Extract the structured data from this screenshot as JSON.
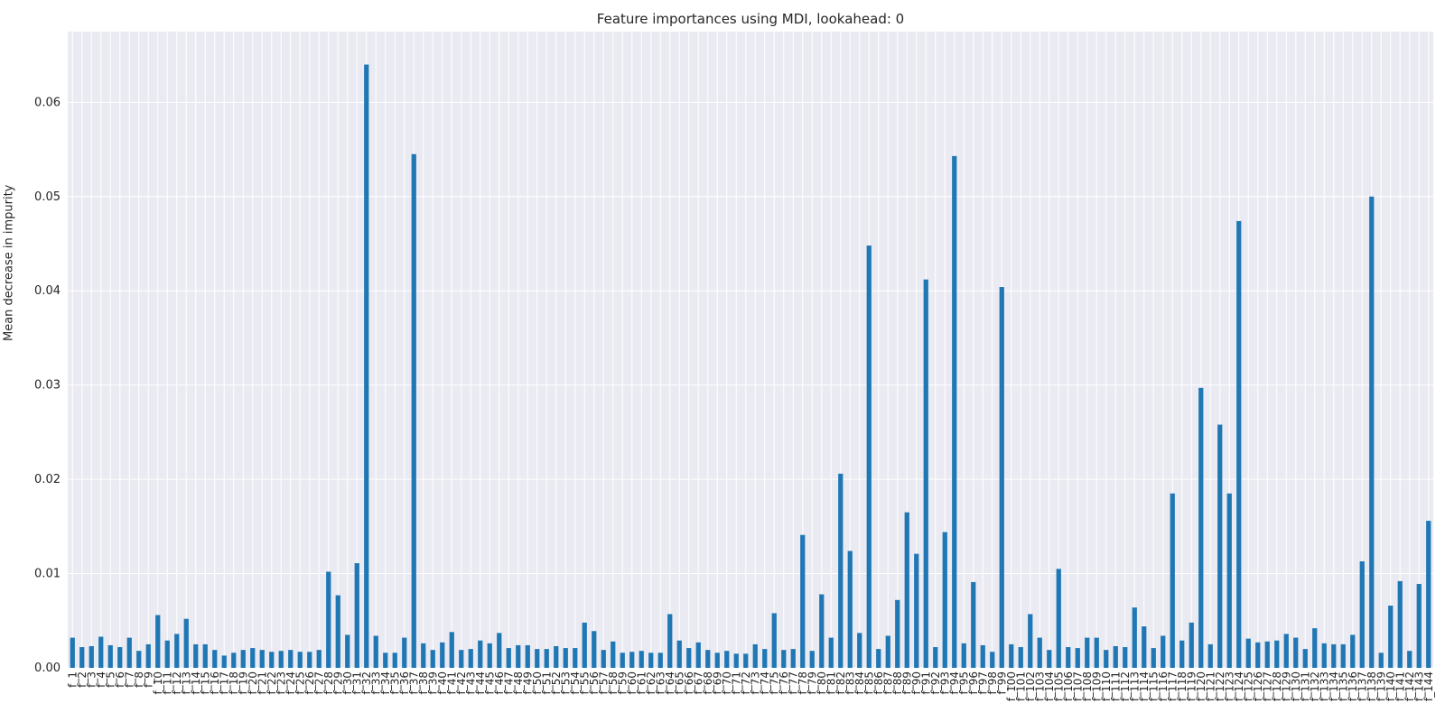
{
  "chart_data": {
    "type": "bar",
    "title": "Feature importances using MDI, lookahead: 0",
    "xlabel": "",
    "ylabel": "Mean decrease in impurity",
    "ylim": [
      0,
      0.0675
    ],
    "yticks": [
      "0.00",
      "0.01",
      "0.02",
      "0.03",
      "0.04",
      "0.05",
      "0.06"
    ],
    "grid": true,
    "bar_color": "#1f77b4",
    "background": "#eaeaf2",
    "categories": [
      "f_1",
      "f_2",
      "f_3",
      "f_4",
      "f_5",
      "f_6",
      "f_7",
      "f_8",
      "f_9",
      "f_10",
      "f_11",
      "f_12",
      "f_13",
      "f_14",
      "f_15",
      "f_16",
      "f_17",
      "f_18",
      "f_19",
      "f_20",
      "f_21",
      "f_22",
      "f_23",
      "f_24",
      "f_25",
      "f_26",
      "f_27",
      "f_28",
      "f_29",
      "f_30",
      "f_31",
      "f_32",
      "f_33",
      "f_34",
      "f_35",
      "f_36",
      "f_37",
      "f_38",
      "f_39",
      "f_40",
      "f_41",
      "f_42",
      "f_43",
      "f_44",
      "f_45",
      "f_46",
      "f_47",
      "f_48",
      "f_49",
      "f_50",
      "f_51",
      "f_52",
      "f_53",
      "f_54",
      "f_55",
      "f_56",
      "f_57",
      "f_58",
      "f_59",
      "f_60",
      "f_61",
      "f_62",
      "f_63",
      "f_64",
      "f_65",
      "f_66",
      "f_67",
      "f_68",
      "f_69",
      "f_70",
      "f_71",
      "f_72",
      "f_73",
      "f_74",
      "f_75",
      "f_76",
      "f_77",
      "f_78",
      "f_79",
      "f_80",
      "f_81",
      "f_82",
      "f_83",
      "f_84",
      "f_85",
      "f_86",
      "f_87",
      "f_88",
      "f_89",
      "f_90",
      "f_91",
      "f_92",
      "f_93",
      "f_94",
      "f_95",
      "f_96",
      "f_97",
      "f_98",
      "f_99",
      "f_100",
      "f_101",
      "f_102",
      "f_103",
      "f_104",
      "f_105",
      "f_106",
      "f_107",
      "f_108",
      "f_109",
      "f_110",
      "f_111",
      "f_112",
      "f_113",
      "f_114",
      "f_115",
      "f_116",
      "f_117",
      "f_118",
      "f_119",
      "f_120",
      "f_121",
      "f_122",
      "f_123",
      "f_124",
      "f_125",
      "f_126",
      "f_127",
      "f_128",
      "f_129",
      "f_130",
      "f_131",
      "f_132",
      "f_133",
      "f_134",
      "f_135",
      "f_136",
      "f_137",
      "f_138",
      "f_139",
      "f_140",
      "f_141",
      "f_142",
      "f_143",
      "f_144"
    ],
    "values": [
      0.0032,
      0.0022,
      0.0023,
      0.0033,
      0.0024,
      0.0022,
      0.0032,
      0.0018,
      0.0025,
      0.0056,
      0.0029,
      0.0036,
      0.0052,
      0.0025,
      0.0025,
      0.0019,
      0.0013,
      0.0016,
      0.0019,
      0.0021,
      0.0019,
      0.0017,
      0.0018,
      0.0019,
      0.0017,
      0.0017,
      0.0019,
      0.0102,
      0.0077,
      0.0035,
      0.0111,
      0.064,
      0.0034,
      0.0016,
      0.0016,
      0.0032,
      0.0545,
      0.0026,
      0.0019,
      0.0027,
      0.0038,
      0.0019,
      0.002,
      0.0029,
      0.0026,
      0.0037,
      0.0021,
      0.0024,
      0.0024,
      0.002,
      0.002,
      0.0023,
      0.0021,
      0.0021,
      0.0048,
      0.0039,
      0.0019,
      0.0028,
      0.0016,
      0.0017,
      0.0018,
      0.0016,
      0.0016,
      0.0057,
      0.0029,
      0.0021,
      0.0027,
      0.0019,
      0.0016,
      0.0018,
      0.0015,
      0.0015,
      0.0025,
      0.002,
      0.0058,
      0.0019,
      0.002,
      0.0141,
      0.0018,
      0.0078,
      0.0032,
      0.0206,
      0.0124,
      0.0037,
      0.0448,
      0.002,
      0.0034,
      0.0072,
      0.0165,
      0.0121,
      0.0412,
      0.0022,
      0.0144,
      0.0543,
      0.0026,
      0.0091,
      0.0024,
      0.0017,
      0.0404,
      0.0025,
      0.0022,
      0.0057,
      0.0032,
      0.0019,
      0.0105,
      0.0022,
      0.0021,
      0.0032,
      0.0032,
      0.0019,
      0.0023,
      0.0022,
      0.0064,
      0.0044,
      0.0021,
      0.0034,
      0.0185,
      0.0029,
      0.0048,
      0.0297,
      0.0025,
      0.0258,
      0.0185,
      0.0474,
      0.0031,
      0.0027,
      0.0028,
      0.0029,
      0.0036,
      0.0032,
      0.002,
      0.0042,
      0.0026,
      0.0025,
      0.0025,
      0.0035,
      0.0113,
      0.05,
      0.0016,
      0.0066,
      0.0092,
      0.0018,
      0.0089,
      0.0156
    ]
  }
}
